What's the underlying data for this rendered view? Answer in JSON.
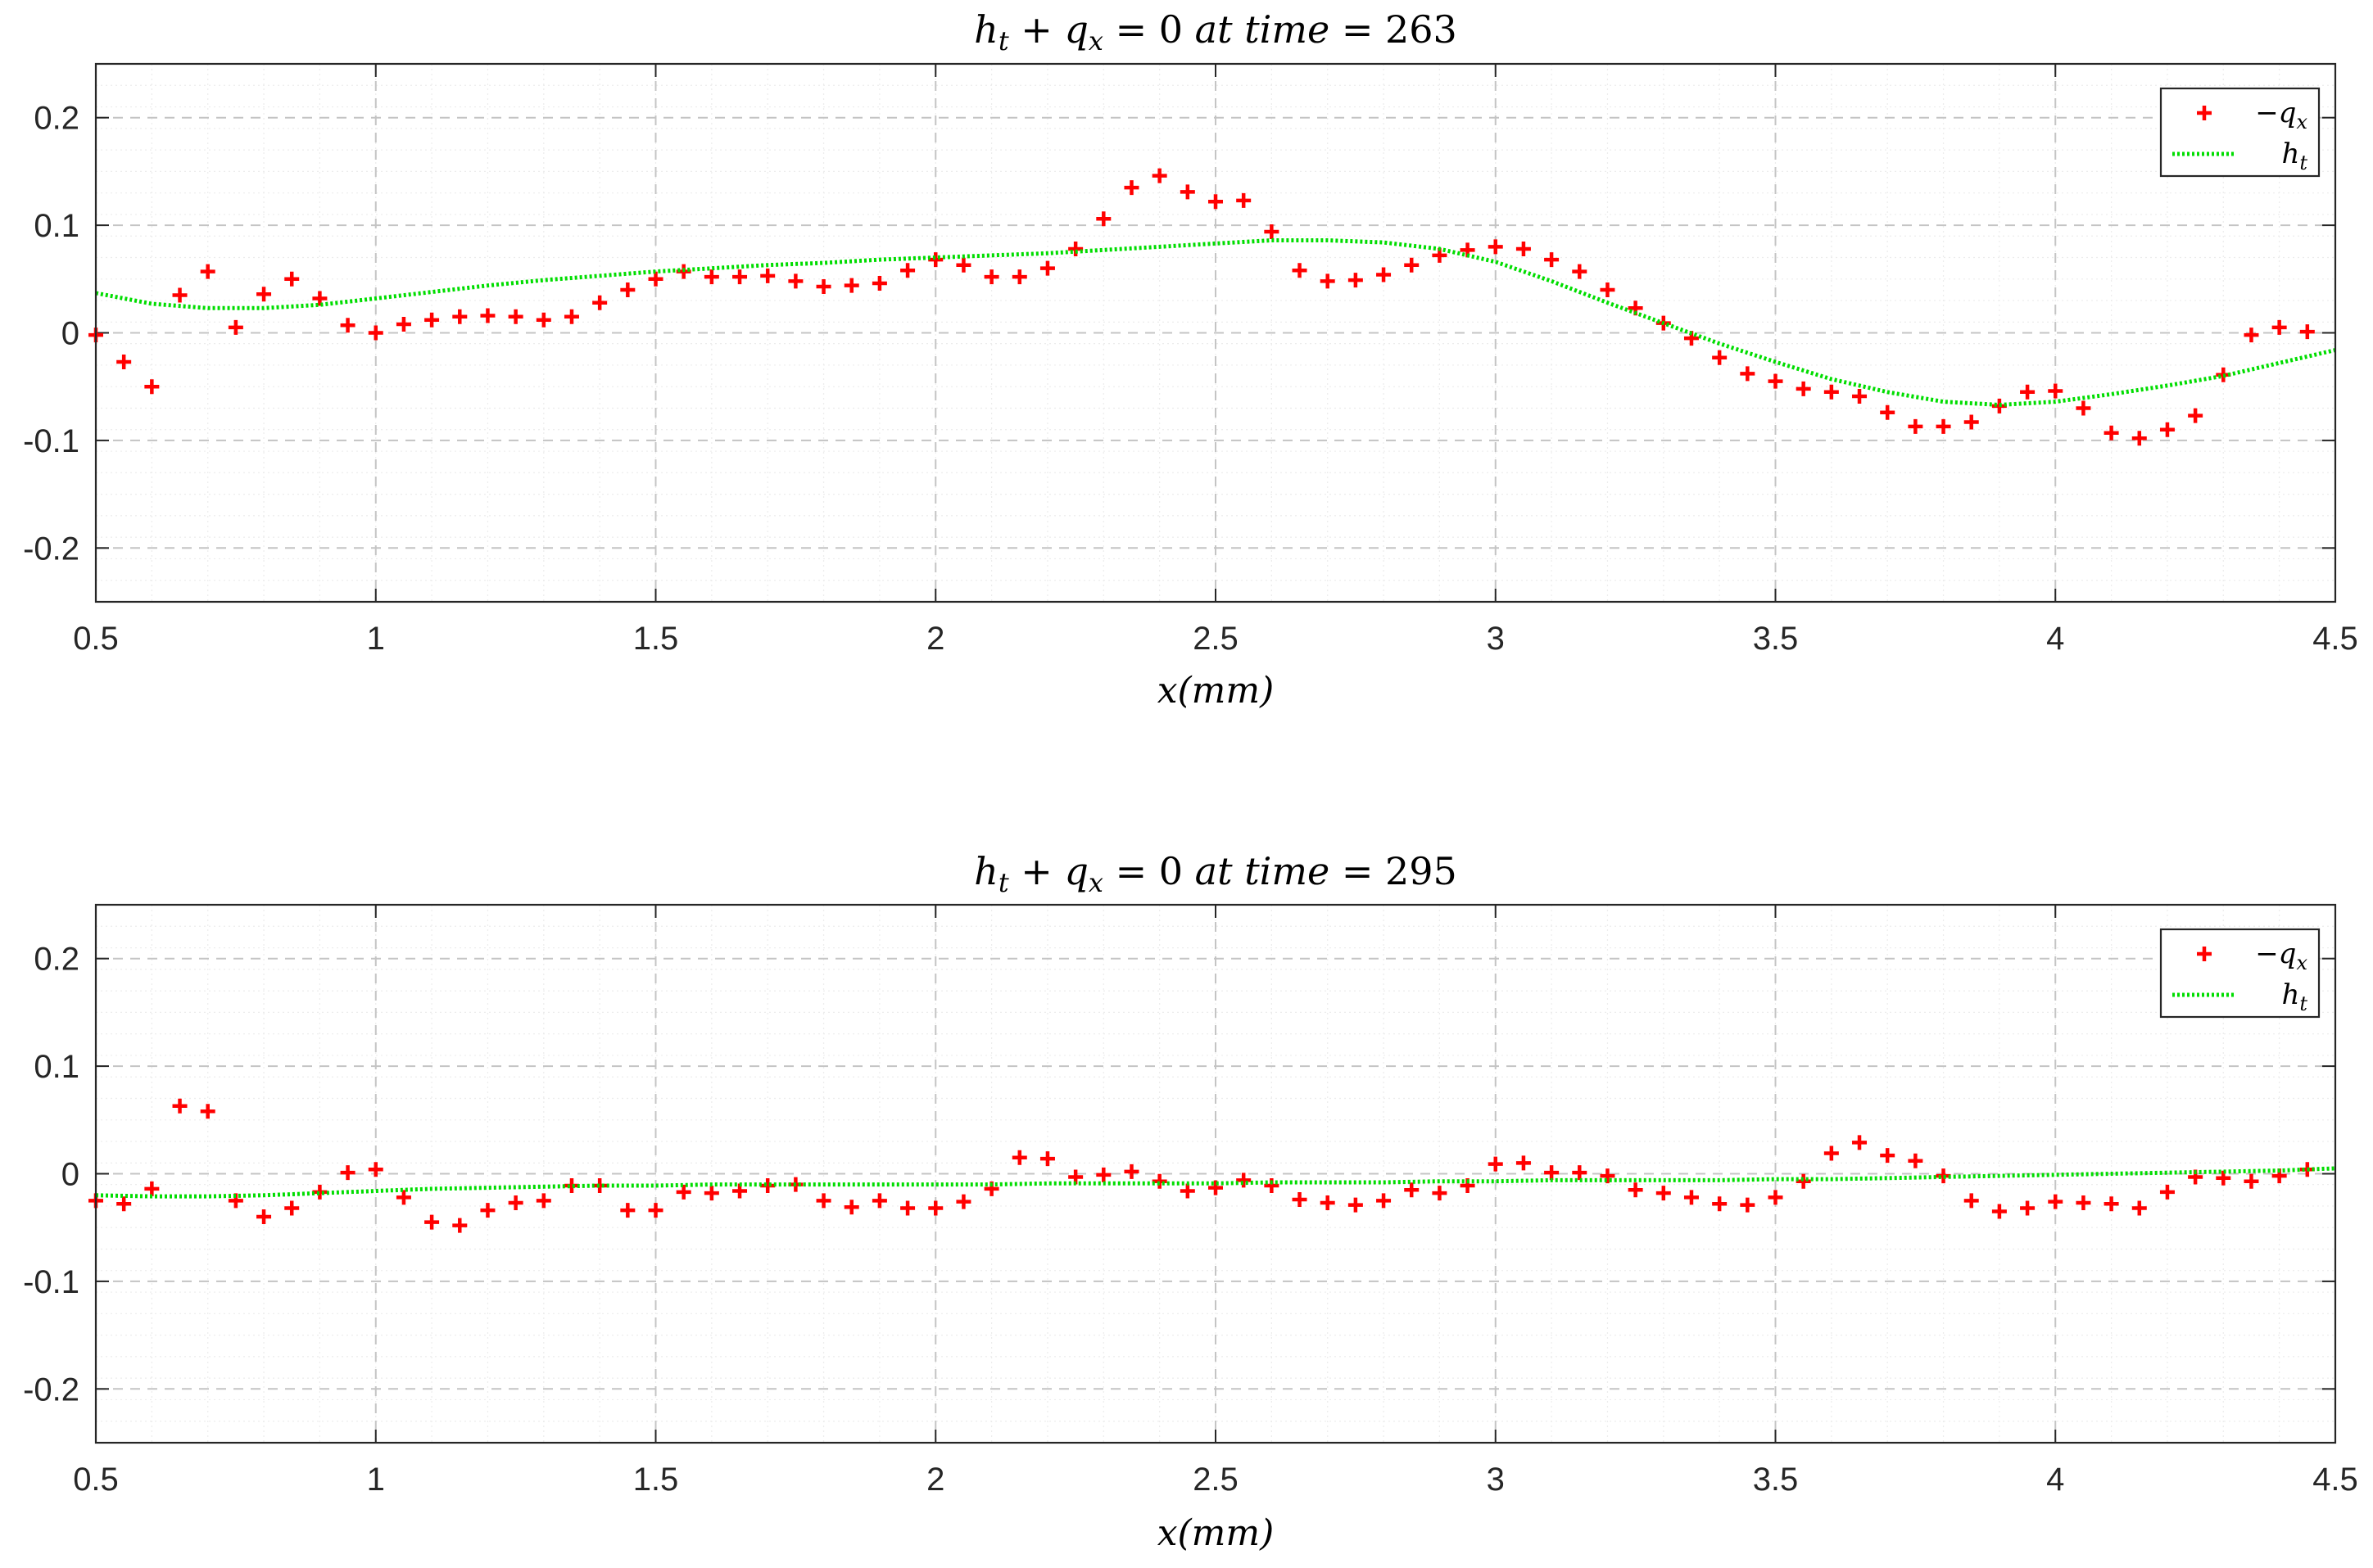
{
  "chart_data": [
    {
      "type": "scatter",
      "title": "h_t + q_x = 0 at time = 263",
      "title_parts": [
        "h",
        "t",
        " + ",
        "q",
        "x",
        " = 0 ",
        "at time",
        " = 263"
      ],
      "xlabel": "x(mm)",
      "ylabel": "",
      "xlim": [
        0.5,
        4.5
      ],
      "ylim": [
        -0.25,
        0.25
      ],
      "xticks": [
        0.5,
        1,
        1.5,
        2,
        2.5,
        3,
        3.5,
        4,
        4.5
      ],
      "xtick_labels": [
        "0.5",
        "1",
        "1.5",
        "2",
        "2.5",
        "3",
        "3.5",
        "4",
        "4.5"
      ],
      "yticks": [
        0.2,
        0.1,
        0,
        -0.1,
        -0.2
      ],
      "ytick_labels": [
        "0.2",
        "0.1",
        "0",
        "-0.1",
        "-0.2"
      ],
      "grid": true,
      "legend_position": "top-right",
      "series": [
        {
          "name": "-q_x",
          "legend_parts": [
            "−q",
            "x"
          ],
          "style": "marker-plus",
          "color": "#ff0000",
          "x": [
            0.5,
            0.55,
            0.6,
            0.65,
            0.7,
            0.75,
            0.8,
            0.85,
            0.9,
            0.95,
            1.0,
            1.05,
            1.1,
            1.15,
            1.2,
            1.25,
            1.3,
            1.35,
            1.4,
            1.45,
            1.5,
            1.55,
            1.6,
            1.65,
            1.7,
            1.75,
            1.8,
            1.85,
            1.9,
            1.95,
            2.0,
            2.05,
            2.1,
            2.15,
            2.2,
            2.25,
            2.3,
            2.35,
            2.4,
            2.45,
            2.5,
            2.55,
            2.6,
            2.65,
            2.7,
            2.75,
            2.8,
            2.85,
            2.9,
            2.95,
            3.0,
            3.05,
            3.1,
            3.15,
            3.2,
            3.25,
            3.3,
            3.35,
            3.4,
            3.45,
            3.5,
            3.55,
            3.6,
            3.65,
            3.7,
            3.75,
            3.8,
            3.85,
            3.9,
            3.95,
            4.0,
            4.05,
            4.1,
            4.15,
            4.2,
            4.25,
            4.3,
            4.35,
            4.4,
            4.45
          ],
          "y": [
            -0.002,
            -0.027,
            -0.05,
            0.035,
            0.057,
            0.005,
            0.036,
            0.05,
            0.032,
            0.007,
            0.0,
            0.008,
            0.012,
            0.015,
            0.016,
            0.015,
            0.012,
            0.015,
            0.028,
            0.04,
            0.05,
            0.057,
            0.052,
            0.052,
            0.053,
            0.048,
            0.043,
            0.044,
            0.046,
            0.058,
            0.068,
            0.063,
            0.052,
            0.052,
            0.06,
            0.078,
            0.106,
            0.135,
            0.146,
            0.131,
            0.122,
            0.123,
            0.094,
            0.058,
            0.048,
            0.049,
            0.054,
            0.063,
            0.072,
            0.077,
            0.08,
            0.078,
            0.068,
            0.057,
            0.04,
            0.023,
            0.009,
            -0.005,
            -0.023,
            -0.038,
            -0.045,
            -0.052,
            -0.055,
            -0.059,
            -0.074,
            -0.087,
            -0.087,
            -0.083,
            -0.068,
            -0.055,
            -0.054,
            -0.07,
            -0.093,
            -0.098,
            -0.09,
            -0.077,
            -0.039,
            -0.002,
            0.005,
            0.001
          ]
        },
        {
          "name": "h_t",
          "legend_parts": [
            "h",
            "t"
          ],
          "style": "dotted-line",
          "color": "#00dd00",
          "x": [
            0.5,
            0.6,
            0.7,
            0.8,
            0.9,
            1.0,
            1.1,
            1.2,
            1.3,
            1.4,
            1.5,
            1.6,
            1.7,
            1.8,
            1.9,
            2.0,
            2.1,
            2.2,
            2.3,
            2.4,
            2.5,
            2.6,
            2.7,
            2.8,
            2.9,
            3.0,
            3.1,
            3.2,
            3.3,
            3.4,
            3.5,
            3.6,
            3.7,
            3.8,
            3.9,
            4.0,
            4.1,
            4.2,
            4.3,
            4.4,
            4.5
          ],
          "y": [
            0.037,
            0.027,
            0.023,
            0.023,
            0.026,
            0.032,
            0.038,
            0.044,
            0.049,
            0.053,
            0.057,
            0.06,
            0.063,
            0.065,
            0.068,
            0.07,
            0.072,
            0.074,
            0.077,
            0.08,
            0.083,
            0.086,
            0.086,
            0.084,
            0.078,
            0.066,
            0.048,
            0.028,
            0.009,
            -0.01,
            -0.027,
            -0.043,
            -0.055,
            -0.064,
            -0.067,
            -0.064,
            -0.057,
            -0.049,
            -0.04,
            -0.028,
            -0.016
          ]
        }
      ]
    },
    {
      "type": "scatter",
      "title": "h_t + q_x = 0 at time = 295",
      "title_parts": [
        "h",
        "t",
        " + ",
        "q",
        "x",
        " = 0 ",
        "at time",
        " = 295"
      ],
      "xlabel": "x(mm)",
      "ylabel": "",
      "xlim": [
        0.5,
        4.5
      ],
      "ylim": [
        -0.25,
        0.25
      ],
      "xticks": [
        0.5,
        1,
        1.5,
        2,
        2.5,
        3,
        3.5,
        4,
        4.5
      ],
      "xtick_labels": [
        "0.5",
        "1",
        "1.5",
        "2",
        "2.5",
        "3",
        "3.5",
        "4",
        "4.5"
      ],
      "yticks": [
        0.2,
        0.1,
        0,
        -0.1,
        -0.2
      ],
      "ytick_labels": [
        "0.2",
        "0.1",
        "0",
        "-0.1",
        "-0.2"
      ],
      "grid": true,
      "legend_position": "top-right",
      "series": [
        {
          "name": "-q_x",
          "legend_parts": [
            "−q",
            "x"
          ],
          "style": "marker-plus",
          "color": "#ff0000",
          "x": [
            0.5,
            0.55,
            0.6,
            0.65,
            0.7,
            0.75,
            0.8,
            0.85,
            0.9,
            0.95,
            1.0,
            1.05,
            1.1,
            1.15,
            1.2,
            1.25,
            1.3,
            1.35,
            1.4,
            1.45,
            1.5,
            1.55,
            1.6,
            1.65,
            1.7,
            1.75,
            1.8,
            1.85,
            1.9,
            1.95,
            2.0,
            2.05,
            2.1,
            2.15,
            2.2,
            2.25,
            2.3,
            2.35,
            2.4,
            2.45,
            2.5,
            2.55,
            2.6,
            2.65,
            2.7,
            2.75,
            2.8,
            2.85,
            2.9,
            2.95,
            3.0,
            3.05,
            3.1,
            3.15,
            3.2,
            3.25,
            3.3,
            3.35,
            3.4,
            3.45,
            3.5,
            3.55,
            3.6,
            3.65,
            3.7,
            3.75,
            3.8,
            3.85,
            3.9,
            3.95,
            4.0,
            4.05,
            4.1,
            4.15,
            4.2,
            4.25,
            4.3,
            4.35,
            4.4,
            4.45
          ],
          "y": [
            -0.025,
            -0.028,
            -0.014,
            0.063,
            0.058,
            -0.025,
            -0.04,
            -0.032,
            -0.017,
            0.001,
            0.004,
            -0.022,
            -0.045,
            -0.048,
            -0.034,
            -0.027,
            -0.025,
            -0.011,
            -0.011,
            -0.034,
            -0.034,
            -0.017,
            -0.018,
            -0.016,
            -0.011,
            -0.01,
            -0.025,
            -0.031,
            -0.025,
            -0.032,
            -0.032,
            -0.026,
            -0.014,
            0.015,
            0.014,
            -0.003,
            -0.001,
            0.002,
            -0.007,
            -0.016,
            -0.013,
            -0.006,
            -0.011,
            -0.024,
            -0.027,
            -0.029,
            -0.025,
            -0.015,
            -0.018,
            -0.011,
            0.009,
            0.01,
            0.001,
            0.001,
            -0.002,
            -0.015,
            -0.018,
            -0.022,
            -0.028,
            -0.029,
            -0.022,
            -0.007,
            0.019,
            0.029,
            0.017,
            0.012,
            -0.002,
            -0.025,
            -0.035,
            -0.032,
            -0.026,
            -0.027,
            -0.028,
            -0.032,
            -0.017,
            -0.003,
            -0.004,
            -0.007,
            -0.002,
            0.004
          ]
        },
        {
          "name": "h_t",
          "legend_parts": [
            "h",
            "t"
          ],
          "style": "dotted-line",
          "color": "#00dd00",
          "x": [
            0.5,
            0.6,
            0.7,
            0.8,
            0.9,
            1.0,
            1.1,
            1.2,
            1.3,
            1.4,
            1.5,
            1.6,
            1.7,
            1.8,
            1.9,
            2.0,
            2.1,
            2.2,
            2.3,
            2.4,
            2.5,
            2.6,
            2.7,
            2.8,
            2.9,
            3.0,
            3.1,
            3.2,
            3.3,
            3.4,
            3.5,
            3.6,
            3.7,
            3.8,
            3.9,
            4.0,
            4.1,
            4.2,
            4.3,
            4.4,
            4.5
          ],
          "y": [
            -0.02,
            -0.021,
            -0.021,
            -0.02,
            -0.018,
            -0.016,
            -0.014,
            -0.013,
            -0.012,
            -0.011,
            -0.011,
            -0.01,
            -0.01,
            -0.01,
            -0.01,
            -0.01,
            -0.01,
            -0.009,
            -0.009,
            -0.009,
            -0.009,
            -0.008,
            -0.008,
            -0.008,
            -0.007,
            -0.007,
            -0.006,
            -0.006,
            -0.006,
            -0.006,
            -0.005,
            -0.005,
            -0.004,
            -0.003,
            -0.002,
            -0.001,
            0.0,
            0.001,
            0.002,
            0.003,
            0.005
          ]
        }
      ]
    }
  ]
}
